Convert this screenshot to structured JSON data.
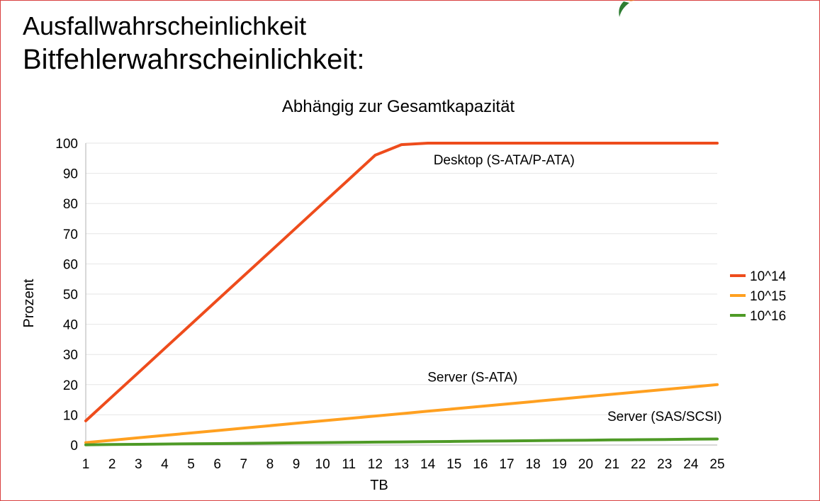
{
  "slide": {
    "title_line1": "Ausfallwahrscheinlichkeit",
    "title_line2": "Bitfehlerwahrscheinlichkeit:"
  },
  "colors": {
    "series_10e14": "#ee4c1c",
    "series_10e15": "#ffa020",
    "series_10e16": "#4e9a26",
    "frame": "#d84040"
  },
  "chart_data": {
    "type": "line",
    "title": "Abhängig zur Gesamtkapazität",
    "xlabel": "TB",
    "ylabel": "Prozent",
    "x": [
      1,
      2,
      3,
      4,
      5,
      6,
      7,
      8,
      9,
      10,
      11,
      12,
      13,
      14,
      15,
      16,
      17,
      18,
      19,
      20,
      21,
      22,
      23,
      24,
      25
    ],
    "xlim": [
      1,
      25
    ],
    "ylim": [
      0,
      100
    ],
    "yticks": [
      0,
      10,
      20,
      30,
      40,
      50,
      60,
      70,
      80,
      90,
      100
    ],
    "grid": true,
    "legend_position": "right",
    "series": [
      {
        "name": "10^14",
        "color": "#ee4c1c",
        "values": [
          8,
          16,
          24,
          32,
          40,
          48,
          56,
          64,
          72,
          80,
          88,
          96,
          99.5,
          100,
          100,
          100,
          100,
          100,
          100,
          100,
          100,
          100,
          100,
          100,
          100
        ]
      },
      {
        "name": "10^15",
        "color": "#ffa020",
        "values": [
          0.8,
          1.6,
          2.4,
          3.2,
          4.0,
          4.8,
          5.6,
          6.4,
          7.2,
          8.0,
          8.8,
          9.6,
          10.4,
          11.2,
          12.0,
          12.8,
          13.6,
          14.4,
          15.2,
          16.0,
          16.8,
          17.6,
          18.4,
          19.2,
          20.0
        ]
      },
      {
        "name": "10^16",
        "color": "#4e9a26",
        "values": [
          0.08,
          0.16,
          0.24,
          0.32,
          0.4,
          0.48,
          0.56,
          0.64,
          0.72,
          0.8,
          0.88,
          0.96,
          1.04,
          1.12,
          1.2,
          1.28,
          1.36,
          1.44,
          1.52,
          1.6,
          1.68,
          1.76,
          1.84,
          1.92,
          2.0
        ]
      }
    ],
    "annotations": [
      {
        "text": "Desktop (S-ATA/P-ATA)",
        "x": 16.9,
        "y": 93
      },
      {
        "text": "Server (S-ATA)",
        "x": 15.7,
        "y": 21
      },
      {
        "text": "Server (SAS/SCSI)",
        "x": 23.0,
        "y": 8
      }
    ]
  }
}
